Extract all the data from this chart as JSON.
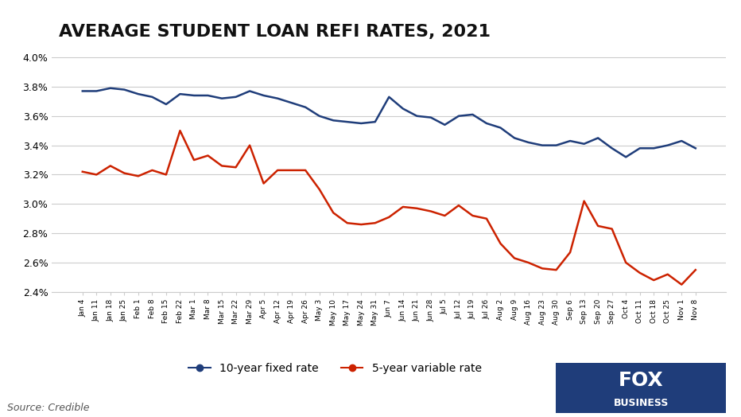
{
  "title": "AVERAGE STUDENT LOAN REFI RATES, 2021",
  "source": "Source: Credible",
  "xlabel": "",
  "ylabel": "",
  "ylim": [
    2.4,
    4.05
  ],
  "yticks": [
    2.4,
    2.6,
    2.8,
    3.0,
    3.2,
    3.4,
    3.6,
    3.8,
    4.0
  ],
  "background_color": "#ffffff",
  "grid_color": "#cccccc",
  "blue_color": "#1f3d7a",
  "red_color": "#cc2200",
  "legend_blue": "10-year fixed rate",
  "legend_red": "5-year variable rate",
  "x_labels": [
    "Jan 4",
    "Jan 11",
    "Jan 18",
    "Jan 25",
    "Feb 1",
    "Feb 8",
    "Feb 15",
    "Feb 22",
    "Mar 1",
    "Mar 8",
    "Mar 15",
    "Mar 22",
    "Mar 29",
    "Apr 5",
    "Apr 12",
    "Apr 19",
    "Apr 26",
    "May 3",
    "May 10",
    "May 17",
    "May 24",
    "May 31",
    "Jun 7",
    "Jun 14",
    "Jun 21",
    "Jun 28",
    "Jul 5",
    "Jul 12",
    "Jul 19",
    "Jul 26",
    "Aug 2",
    "Aug 9",
    "Aug 16",
    "Aug 23",
    "Aug 30",
    "Sep 6",
    "Sep 13",
    "Sep 20",
    "Sep 27",
    "Oct 4",
    "Oct 11",
    "Oct 18",
    "Oct 25",
    "Nov 1",
    "Nov 8"
  ],
  "fixed_10yr": [
    3.77,
    3.77,
    3.79,
    3.78,
    3.75,
    3.73,
    3.68,
    3.75,
    3.74,
    3.74,
    3.72,
    3.73,
    3.77,
    3.74,
    3.72,
    3.69,
    3.66,
    3.6,
    3.57,
    3.56,
    3.55,
    3.56,
    3.73,
    3.65,
    3.6,
    3.59,
    3.54,
    3.6,
    3.61,
    3.55,
    3.52,
    3.45,
    3.42,
    3.4,
    3.4,
    3.43,
    3.41,
    3.45,
    3.38,
    3.32,
    3.38,
    3.38,
    3.4,
    3.43,
    3.38
  ],
  "var_5yr": [
    3.22,
    3.2,
    3.26,
    3.21,
    3.19,
    3.23,
    3.2,
    3.5,
    3.3,
    3.33,
    3.26,
    3.25,
    3.4,
    3.14,
    3.23,
    3.23,
    3.23,
    3.1,
    2.94,
    2.87,
    2.86,
    2.87,
    2.91,
    2.98,
    2.97,
    2.95,
    2.92,
    2.99,
    2.92,
    2.9,
    2.73,
    2.63,
    2.6,
    2.56,
    2.55,
    2.67,
    3.02,
    2.85,
    2.83,
    2.6,
    2.53,
    2.48,
    2.52,
    2.45,
    2.55
  ]
}
